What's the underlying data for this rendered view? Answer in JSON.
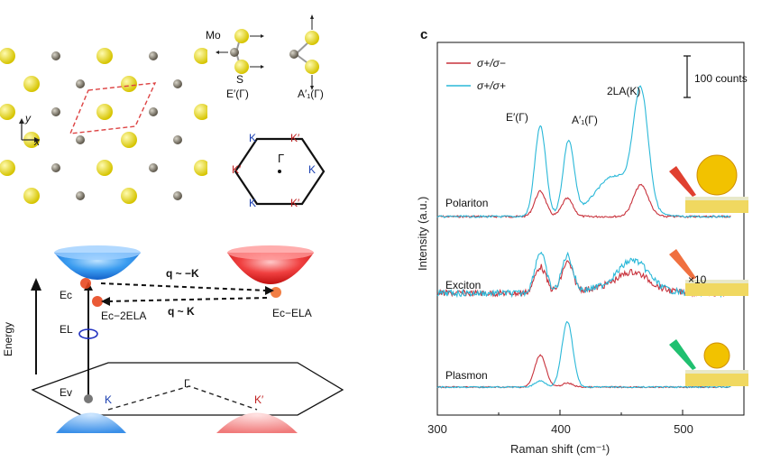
{
  "figure": {
    "panel_c_label": "c",
    "lattice": {
      "x_axis": "x",
      "y_axis": "y"
    },
    "modes": {
      "mo_label": "Mo",
      "s_label": "S",
      "e_mode": "E′(Γ)",
      "a_mode": "A′₁(Γ)"
    },
    "brillouin": {
      "gamma": "Γ",
      "k_labels": [
        "K",
        "K′",
        "K",
        "K′",
        "K",
        "K′"
      ]
    },
    "schematic": {
      "energy_label": "Energy",
      "ec": "Ec",
      "ev": "Ev",
      "el": "EL",
      "ec_2ela": "Ec−2ELA",
      "ec_ela": "Ec−ELA",
      "q_top": "q ~ −K",
      "q_bottom": "q ~ K",
      "gamma": "Γ",
      "k": "K",
      "k_prime": "K′"
    },
    "legend": {
      "series1": "σ+/σ−",
      "series2": "σ+/σ+",
      "series1_color": "#c8323c",
      "series2_color": "#2ab8d8"
    },
    "scale_bar": "100 counts",
    "peak_labels": {
      "e": "E′(Γ)",
      "a": "A′₁(Γ)",
      "la": "2LA(K)"
    },
    "trace_labels": {
      "polariton": "Polariton",
      "exciton": "Exciton",
      "plasmon": "Plasmon",
      "x10": "×10"
    }
  },
  "chart_data": {
    "type": "line",
    "title": "",
    "xlabel": "Raman shift (cm⁻¹)",
    "ylabel": "Intensity (a.u.)",
    "xlim": [
      300,
      550
    ],
    "x_ticks": [
      300,
      400,
      500
    ],
    "y_ticks_shown": false,
    "series": [
      {
        "name": "σ+/σ−",
        "color": "#c8323c",
        "group": "Polariton",
        "peaks": [
          {
            "x": 384,
            "height": 0.28
          },
          {
            "x": 406,
            "height": 0.2
          },
          {
            "x": 466,
            "height": 0.35
          }
        ],
        "baseline": 0.0
      },
      {
        "name": "σ+/σ+",
        "color": "#2ab8d8",
        "group": "Polariton",
        "peaks": [
          {
            "x": 384,
            "height": 1.0
          },
          {
            "x": 407,
            "height": 0.82
          },
          {
            "x": 466,
            "height": 1.25
          },
          {
            "x": 445,
            "height": 0.45
          }
        ],
        "baseline": 0.0
      },
      {
        "name": "σ+/σ−",
        "color": "#c8323c",
        "group": "Exciton",
        "peaks": [
          {
            "x": 384,
            "height": 0.45
          },
          {
            "x": 406,
            "height": 0.5
          },
          {
            "x": 460,
            "height": 0.25
          }
        ],
        "baseline": 0.0
      },
      {
        "name": "σ+/σ+",
        "color": "#2ab8d8",
        "group": "Exciton",
        "peaks": [
          {
            "x": 384,
            "height": 0.7
          },
          {
            "x": 406,
            "height": 0.62
          },
          {
            "x": 460,
            "height": 0.45
          }
        ],
        "baseline": 0.0
      },
      {
        "name": "σ+/σ−",
        "color": "#c8323c",
        "group": "Plasmon",
        "peaks": [
          {
            "x": 384,
            "height": 0.42
          },
          {
            "x": 406,
            "height": 0.05
          }
        ],
        "baseline": 0.0
      },
      {
        "name": "σ+/σ+",
        "color": "#2ab8d8",
        "group": "Plasmon",
        "peaks": [
          {
            "x": 384,
            "height": 0.08
          },
          {
            "x": 406,
            "height": 0.85
          }
        ],
        "baseline": 0.0
      }
    ]
  }
}
